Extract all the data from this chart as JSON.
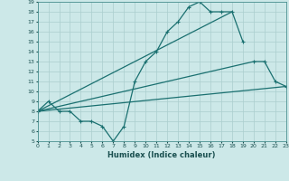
{
  "background_color": "#cce8e8",
  "grid_color": "#aacece",
  "line_color": "#1a7070",
  "xlabel": "Humidex (Indice chaleur)",
  "ylim": [
    5,
    19
  ],
  "xlim": [
    0,
    23
  ],
  "yticks": [
    5,
    6,
    7,
    8,
    9,
    10,
    11,
    12,
    13,
    14,
    15,
    16,
    17,
    18,
    19
  ],
  "xticks": [
    0,
    1,
    2,
    3,
    4,
    5,
    6,
    7,
    8,
    9,
    10,
    11,
    12,
    13,
    14,
    15,
    16,
    17,
    18,
    19,
    20,
    21,
    22,
    23
  ],
  "line1_x": [
    0,
    1,
    2,
    3,
    4,
    5,
    6,
    7,
    8,
    9,
    10,
    11,
    12,
    13,
    14,
    15,
    16,
    17,
    18,
    19
  ],
  "line1_y": [
    8,
    9,
    8,
    8,
    7,
    7,
    6.5,
    5,
    6.5,
    11,
    13,
    14,
    16,
    17,
    18.5,
    19,
    18,
    18,
    18,
    15
  ],
  "line2_x": [
    0,
    20,
    21,
    22,
    23
  ],
  "line2_y": [
    8,
    13,
    13,
    11,
    10.5
  ],
  "line3_x": [
    0,
    23
  ],
  "line3_y": [
    8,
    10.5
  ],
  "line4_x": [
    0,
    18
  ],
  "line4_y": [
    8,
    18
  ]
}
